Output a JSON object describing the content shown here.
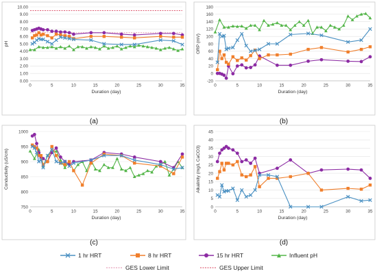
{
  "figure": {
    "panel_labels": [
      "(a)",
      "(b)",
      "(c)",
      "(d)"
    ],
    "legend": {
      "hrt1": "1 hr HRT",
      "hrt8": "8 hr HRT",
      "hrt15": "15 hr HRT",
      "influent": "Influent pH",
      "lower": "GES Lower Limit",
      "upper": "GES Upper Limit"
    }
  },
  "colors": {
    "hrt1": "#4a90c2",
    "hrt8": "#f07f2c",
    "hrt15": "#8c2ba3",
    "influent": "#53b548",
    "ges_lower": "#e08aa8",
    "ges_upper": "#d9445e"
  },
  "chart_data": [
    {
      "type": "line",
      "panel": "(a)",
      "xlabel": "Duration (day)",
      "ylabel": "pH",
      "xlim": [
        0,
        35
      ],
      "ylim": [
        0,
        10
      ],
      "xticks": [
        0,
        5,
        10,
        15,
        20,
        25,
        30,
        35
      ],
      "yticks": [
        0.0,
        1.0,
        2.0,
        3.0,
        4.0,
        5.0,
        6.0,
        7.0,
        8.0,
        9.0,
        10.0
      ],
      "ytick_labels": [
        "0.00",
        "1.00",
        "2.00",
        "3.00",
        "4.00",
        "5.00",
        "6.00",
        "7.00",
        "8.00",
        "9.00",
        "10.00"
      ],
      "grid": true,
      "hlines": [
        {
          "key": "ges_lower",
          "y": 6.5
        },
        {
          "key": "ges_upper",
          "y": 9.5
        }
      ],
      "series": [
        {
          "key": "hrt1",
          "name": "1 hr HRT",
          "x": [
            0.5,
            1,
            1.5,
            2,
            2.5,
            3,
            4,
            5,
            6,
            7,
            8,
            9,
            10,
            14,
            17,
            21,
            24,
            30,
            33,
            35
          ],
          "y": [
            5.0,
            5.2,
            5.5,
            5.7,
            5.6,
            5.6,
            5.3,
            5.0,
            5.5,
            5.9,
            5.8,
            5.7,
            5.6,
            5.5,
            5.0,
            4.9,
            4.9,
            5.5,
            5.4,
            4.9
          ]
        },
        {
          "key": "hrt8",
          "name": "8 hr HRT",
          "x": [
            0.5,
            1,
            1.5,
            2,
            2.5,
            3,
            4,
            5,
            6,
            7,
            8,
            9,
            10,
            14,
            17,
            21,
            24,
            30,
            33,
            35
          ],
          "y": [
            5.8,
            6.1,
            6.2,
            6.5,
            6.2,
            6.3,
            6.1,
            5.8,
            6.3,
            6.2,
            6.1,
            6.0,
            5.7,
            6.0,
            6.0,
            5.9,
            5.8,
            6.0,
            5.9,
            5.9
          ]
        },
        {
          "key": "hrt15",
          "name": "15 hr HRT",
          "x": [
            0.5,
            1,
            1.5,
            2,
            2.5,
            3,
            4,
            5,
            6,
            7,
            8,
            9,
            10,
            14,
            17,
            21,
            24,
            30,
            33,
            35
          ],
          "y": [
            6.8,
            6.9,
            7.0,
            7.1,
            7.0,
            6.9,
            6.9,
            6.7,
            6.7,
            6.6,
            6.6,
            6.5,
            6.3,
            6.5,
            6.5,
            6.3,
            6.2,
            6.4,
            6.4,
            6.2
          ]
        },
        {
          "key": "influent",
          "name": "Influent pH",
          "x": [
            0,
            1,
            2,
            3,
            4,
            5,
            6,
            7,
            8,
            9,
            10,
            11,
            12,
            13,
            14,
            15,
            16,
            17,
            18,
            19,
            20,
            21,
            22,
            23,
            24,
            25,
            26,
            27,
            28,
            29,
            30,
            31,
            32,
            33,
            34,
            35
          ],
          "y": [
            4.2,
            4.2,
            4.6,
            4.5,
            4.5,
            4.6,
            4.4,
            4.6,
            4.4,
            4.7,
            4.2,
            4.6,
            4.6,
            4.4,
            4.6,
            4.5,
            4.3,
            4.7,
            4.4,
            4.5,
            4.7,
            4.3,
            4.5,
            4.7,
            4.6,
            4.8,
            4.7,
            4.6,
            4.5,
            4.4,
            4.2,
            4.4,
            4.5,
            4.3,
            4.1,
            4.3
          ]
        }
      ]
    },
    {
      "type": "line",
      "panel": "(b)",
      "xlabel": "Duration (day)",
      "ylabel": "ORP (mV)",
      "xlim": [
        0,
        35
      ],
      "ylim": [
        -20,
        180
      ],
      "xticks": [
        0,
        5,
        10,
        15,
        20,
        25,
        30,
        35
      ],
      "yticks": [
        -20,
        0,
        20,
        40,
        60,
        80,
        100,
        120,
        140,
        160,
        180
      ],
      "ytick_labels": [
        "-20",
        "0",
        "20",
        "40",
        "60",
        "80",
        "100",
        "120",
        "140",
        "160",
        "180"
      ],
      "grid": true,
      "series": [
        {
          "key": "hrt1",
          "name": "1 hr HRT",
          "x": [
            0.5,
            1,
            1.5,
            2,
            2.5,
            3,
            4,
            5,
            6,
            7,
            8,
            9,
            10,
            12,
            14,
            17,
            21,
            24,
            30,
            33,
            35
          ],
          "y": [
            30,
            107,
            100,
            102,
            65,
            68,
            70,
            90,
            107,
            75,
            60,
            62,
            65,
            80,
            80,
            105,
            108,
            103,
            85,
            90,
            120
          ]
        },
        {
          "key": "hrt8",
          "name": "8 hr HRT",
          "x": [
            0.5,
            1,
            1.5,
            2,
            2.5,
            3,
            4,
            5,
            6,
            7,
            8,
            9,
            10,
            12,
            14,
            17,
            21,
            24,
            30,
            33,
            35
          ],
          "y": [
            10,
            60,
            40,
            50,
            30,
            25,
            45,
            35,
            42,
            36,
            48,
            63,
            40,
            50,
            50,
            52,
            65,
            70,
            58,
            65,
            72
          ]
        },
        {
          "key": "hrt15",
          "name": "15 hr HRT",
          "x": [
            0.5,
            1,
            1.5,
            2,
            2.5,
            3,
            4,
            5,
            6,
            7,
            8,
            9,
            10,
            14,
            17,
            21,
            24,
            30,
            33,
            35
          ],
          "y": [
            0,
            0,
            -2,
            -5,
            -13,
            20,
            -1,
            20,
            23,
            15,
            16,
            23,
            47,
            22,
            22,
            33,
            37,
            33,
            32,
            45
          ]
        },
        {
          "key": "influent",
          "name": "Influent pH",
          "x": [
            0,
            1,
            2,
            3,
            4,
            5,
            6,
            7,
            8,
            9,
            10,
            11,
            12,
            13,
            14,
            15,
            16,
            17,
            18,
            19,
            20,
            21,
            22,
            23,
            24,
            25,
            26,
            27,
            28,
            29,
            30,
            31,
            32,
            33,
            34,
            35
          ],
          "y": [
            112,
            145,
            125,
            125,
            128,
            127,
            128,
            122,
            130,
            130,
            118,
            143,
            130,
            133,
            137,
            130,
            130,
            118,
            130,
            140,
            130,
            143,
            108,
            125,
            125,
            115,
            130,
            125,
            120,
            130,
            155,
            145,
            155,
            160,
            162,
            150
          ]
        }
      ]
    },
    {
      "type": "line",
      "panel": "(c)",
      "xlabel": "Duration (day)",
      "ylabel": "Conductivity (uS/cm)",
      "xlim": [
        0,
        35
      ],
      "ylim": [
        750,
        1000
      ],
      "xticks": [
        0,
        5,
        10,
        15,
        20,
        25,
        30,
        35
      ],
      "yticks": [
        750,
        800,
        850,
        900,
        950,
        1000
      ],
      "ytick_labels": [
        "750",
        "800",
        "850",
        "900",
        "950",
        "1000"
      ],
      "grid": true,
      "series": [
        {
          "key": "hrt1",
          "name": "1 hr HRT",
          "x": [
            0.5,
            1,
            1.5,
            2,
            2.5,
            3,
            4,
            5,
            6,
            7,
            8,
            9,
            10,
            14,
            17,
            21,
            24,
            30,
            33,
            35
          ],
          "y": [
            950,
            945,
            930,
            900,
            905,
            880,
            920,
            940,
            900,
            895,
            900,
            885,
            895,
            905,
            920,
            920,
            905,
            890,
            875,
            880
          ]
        },
        {
          "key": "hrt8",
          "name": "8 hr HRT",
          "x": [
            0.5,
            1,
            1.5,
            2,
            2.5,
            3,
            4,
            5,
            6,
            7,
            8,
            9,
            10,
            12,
            14,
            17,
            21,
            24,
            30,
            33,
            35
          ],
          "y": [
            955,
            950,
            945,
            920,
            920,
            890,
            900,
            950,
            920,
            895,
            890,
            900,
            870,
            822,
            895,
            925,
            920,
            895,
            885,
            860,
            915
          ]
        },
        {
          "key": "hrt15",
          "name": "15 hr HRT",
          "x": [
            0.5,
            1,
            1.5,
            2,
            2.5,
            3,
            4,
            5,
            6,
            7,
            8,
            9,
            10,
            14,
            17,
            21,
            24,
            30,
            33,
            35
          ],
          "y": [
            985,
            990,
            960,
            930,
            915,
            910,
            900,
            930,
            945,
            915,
            900,
            890,
            900,
            905,
            930,
            925,
            915,
            900,
            880,
            925
          ]
        },
        {
          "key": "influent",
          "name": "Influent pH",
          "x": [
            0,
            1,
            2,
            3,
            4,
            5,
            6,
            7,
            8,
            9,
            10,
            11,
            12,
            13,
            14,
            15,
            16,
            17,
            18,
            19,
            20,
            21,
            22,
            23,
            24,
            25,
            26,
            27,
            28,
            29,
            30,
            31,
            32,
            33,
            34,
            35
          ],
          "y": [
            935,
            910,
            940,
            885,
            920,
            930,
            935,
            905,
            880,
            900,
            870,
            890,
            900,
            870,
            905,
            875,
            870,
            890,
            880,
            880,
            910,
            875,
            870,
            880,
            850,
            855,
            860,
            870,
            865,
            885,
            890,
            900,
            855,
            875,
            900,
            880
          ]
        }
      ]
    },
    {
      "type": "line",
      "panel": "(d)",
      "xlabel": "Duration (day)",
      "ylabel": "Alkalinity (mg/L CaCO3)",
      "xlim": [
        0,
        35
      ],
      "ylim": [
        0,
        45
      ],
      "xticks": [
        0,
        5,
        10,
        15,
        20,
        25,
        30,
        35
      ],
      "yticks": [
        0,
        5,
        10,
        15,
        20,
        25,
        30,
        35,
        40,
        45
      ],
      "ytick_labels": [
        "0",
        "5",
        "10",
        "15",
        "20",
        "25",
        "30",
        "35",
        "40",
        "45"
      ],
      "grid": true,
      "series": [
        {
          "key": "hrt1",
          "name": "1 hr HRT",
          "x": [
            0.5,
            1,
            1.5,
            2,
            2.5,
            3,
            4,
            5,
            6,
            7,
            8,
            9,
            10,
            12,
            14,
            17,
            21,
            24,
            30,
            33,
            35
          ],
          "y": [
            7,
            6,
            13,
            9,
            9.5,
            9.5,
            11,
            4,
            10,
            6,
            7,
            10,
            19,
            19,
            18,
            0,
            0,
            0,
            6,
            3.5,
            4
          ]
        },
        {
          "key": "hrt8",
          "name": "8 hr HRT",
          "x": [
            0.5,
            1,
            1.5,
            2,
            2.5,
            3,
            4,
            5,
            6,
            7,
            8,
            9,
            10,
            12,
            14,
            17,
            21,
            24,
            30,
            33,
            35
          ],
          "y": [
            17,
            21,
            26,
            22,
            26,
            26,
            25,
            27,
            19,
            18,
            19,
            24,
            12,
            17,
            17,
            18,
            20,
            10,
            11,
            10.5,
            13
          ]
        },
        {
          "key": "hrt15",
          "name": "15 hr HRT",
          "x": [
            0.5,
            1,
            1.5,
            2,
            2.5,
            3,
            4,
            5,
            6,
            7,
            8,
            9,
            10,
            14,
            17,
            21,
            24,
            30,
            33,
            35
          ],
          "y": [
            27,
            32,
            34,
            35,
            36,
            35,
            34,
            32,
            27,
            28,
            26,
            29,
            20,
            23,
            28,
            20,
            22,
            22.5,
            22,
            17
          ]
        }
      ]
    }
  ]
}
